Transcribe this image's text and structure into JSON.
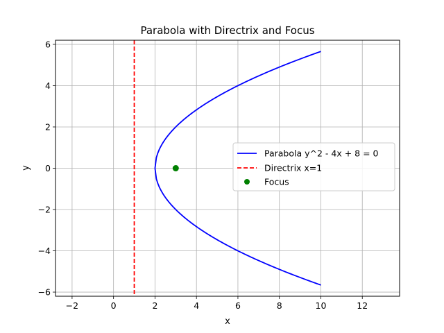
{
  "chart_data": {
    "type": "line",
    "title": "Parabola with Directrix and Focus",
    "xlabel": "x",
    "ylabel": "y",
    "xlim": [
      -2.8,
      13.8
    ],
    "ylim": [
      -6.2,
      6.2
    ],
    "xticks": [
      -2,
      0,
      2,
      4,
      6,
      8,
      10,
      12
    ],
    "yticks": [
      -6,
      -4,
      -2,
      0,
      2,
      4,
      6
    ],
    "xtick_labels": [
      "−2",
      "0",
      "2",
      "4",
      "6",
      "8",
      "10",
      "12"
    ],
    "ytick_labels": [
      "−6",
      "−4",
      "−2",
      "0",
      "2",
      "4",
      "6"
    ],
    "grid": true,
    "legend_position": "center-right",
    "series": [
      {
        "name": "Parabola y^2 - 4x + 8 = 0",
        "kind": "curve",
        "equation": "x = (y^2 + 8) / 4",
        "x_range": [
          2,
          10
        ],
        "color": "#0000ff",
        "linestyle": "solid"
      },
      {
        "name": "Directrix x=1",
        "kind": "vline",
        "x": 1,
        "color": "#ff0000",
        "linestyle": "dashed"
      },
      {
        "name": "Focus",
        "kind": "point",
        "x": 3,
        "y": 0,
        "color": "#008000",
        "marker": "circle"
      }
    ]
  }
}
